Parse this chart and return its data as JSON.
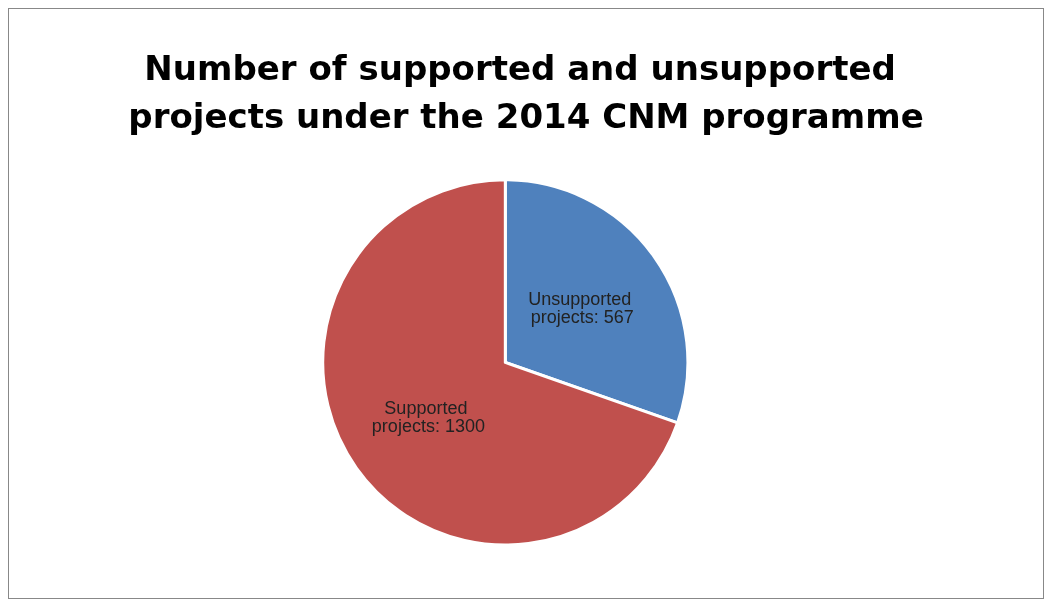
{
  "chart_data": {
    "type": "pie",
    "title": "Number of supported and unsupported projects under the 2014 CNM programme",
    "categories": [
      "Unsupported projects: 567",
      "Supported projects: 1300"
    ],
    "values": [
      567,
      1300
    ],
    "colors": [
      "#4f81bd",
      "#c0504d"
    ],
    "legend": false
  }
}
